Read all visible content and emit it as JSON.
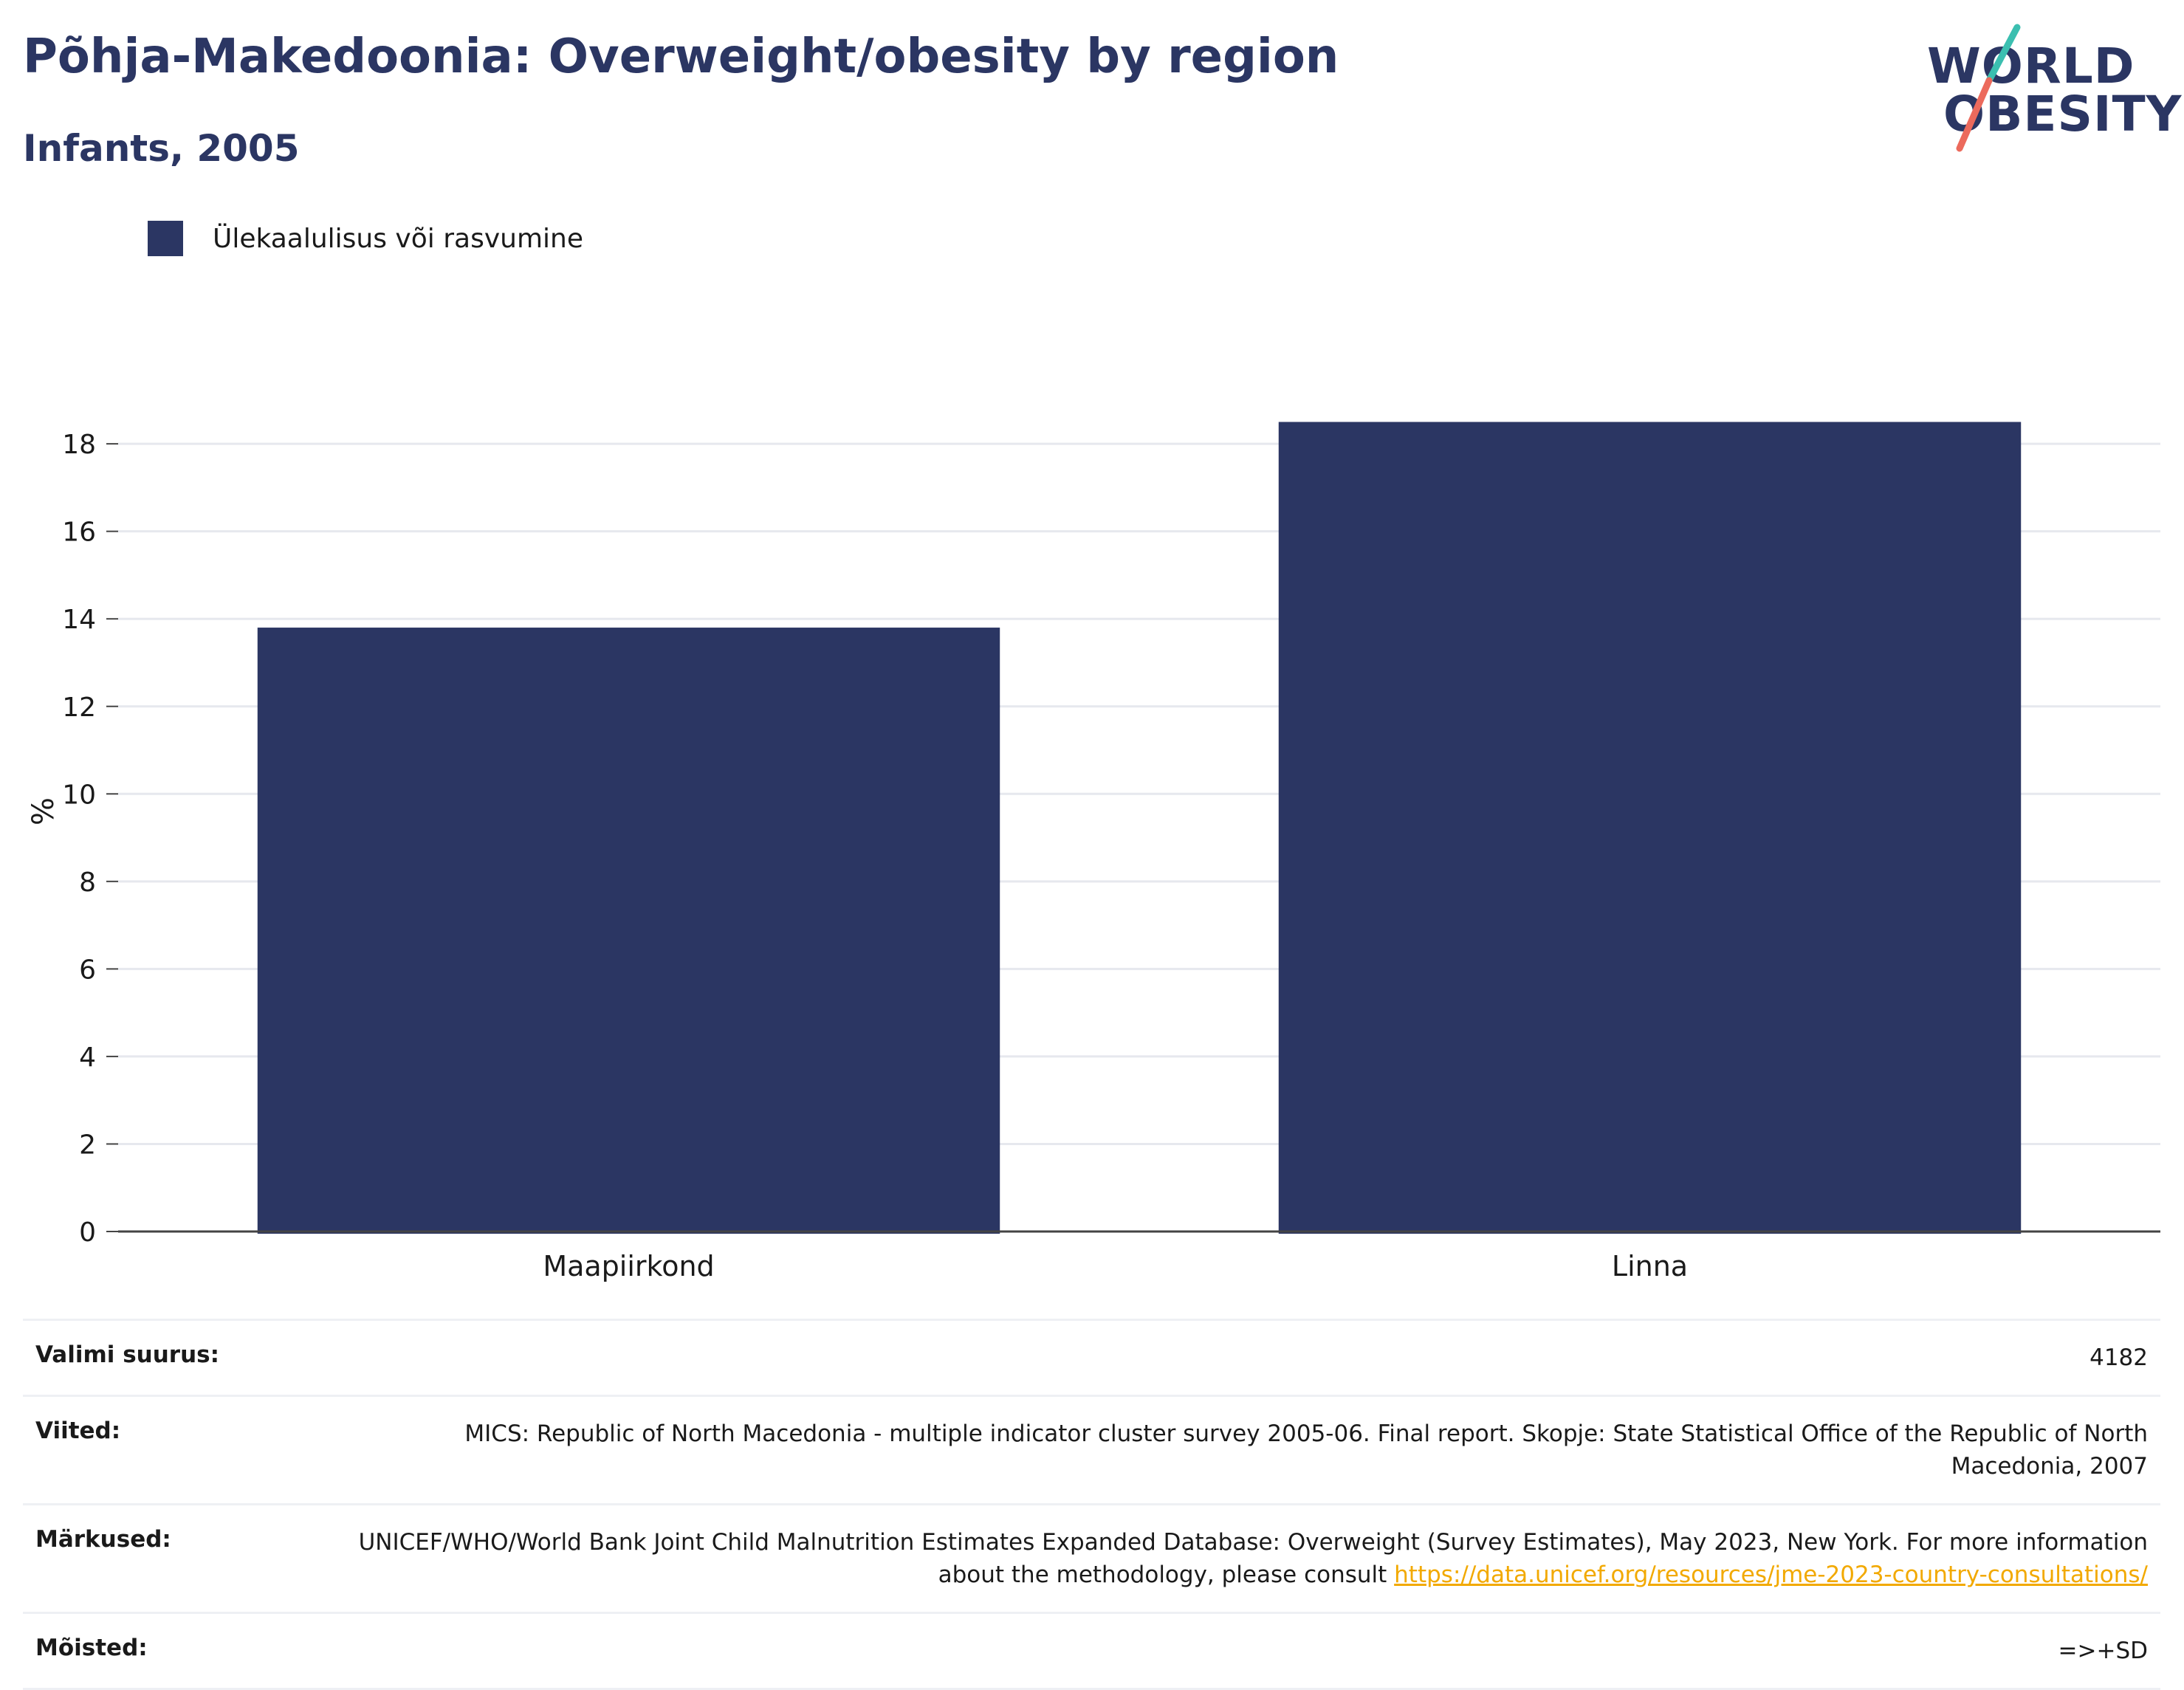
{
  "header": {
    "title": "Põhja-Makedoonia: Overweight/obesity by region",
    "subtitle": "Infants, 2005"
  },
  "logo": {
    "line1": "WORLD",
    "line2": "OBESITY",
    "colors": {
      "text": "#2b3663",
      "slash_top": "#3bbfb0",
      "slash_bottom": "#ec6a5c"
    }
  },
  "legend": {
    "items": [
      {
        "label": "Ülekaalulisus või rasvumine",
        "color": "#2b3663"
      }
    ]
  },
  "chart_data": {
    "type": "bar",
    "title": "Põhja-Makedoonia: Overweight/obesity by region",
    "subtitle": "Infants, 2005",
    "categories": [
      "Maapiirkond",
      "Linna"
    ],
    "series": [
      {
        "name": "Ülekaalulisus või rasvumine",
        "values": [
          13.8,
          18.5
        ],
        "color": "#2b3663"
      }
    ],
    "xlabel": "",
    "ylabel": "%",
    "ylim": [
      0,
      19.2
    ],
    "yticks": [
      0,
      2,
      4,
      6,
      8,
      10,
      12,
      14,
      16,
      18
    ],
    "grid": true,
    "legend_position": "top-left"
  },
  "info": {
    "rows": [
      {
        "key": "Valimi suurus:",
        "value": "4182"
      },
      {
        "key": "Viited:",
        "value": "MICS: Republic of North Macedonia - multiple indicator cluster survey 2005-06. Final report. Skopje: State Statistical Office of the Republic of North Macedonia, 2007"
      },
      {
        "key": "Märkused:",
        "value": "UNICEF/WHO/World Bank Joint Child Malnutrition Estimates Expanded Database: Overweight (Survey Estimates), May 2023, New York. For more information about the methodology, please consult ",
        "link": "https://data.unicef.org/resources/jme-2023-country-consultations/"
      },
      {
        "key": "Mõisted:",
        "value": "=>+SD"
      }
    ]
  }
}
